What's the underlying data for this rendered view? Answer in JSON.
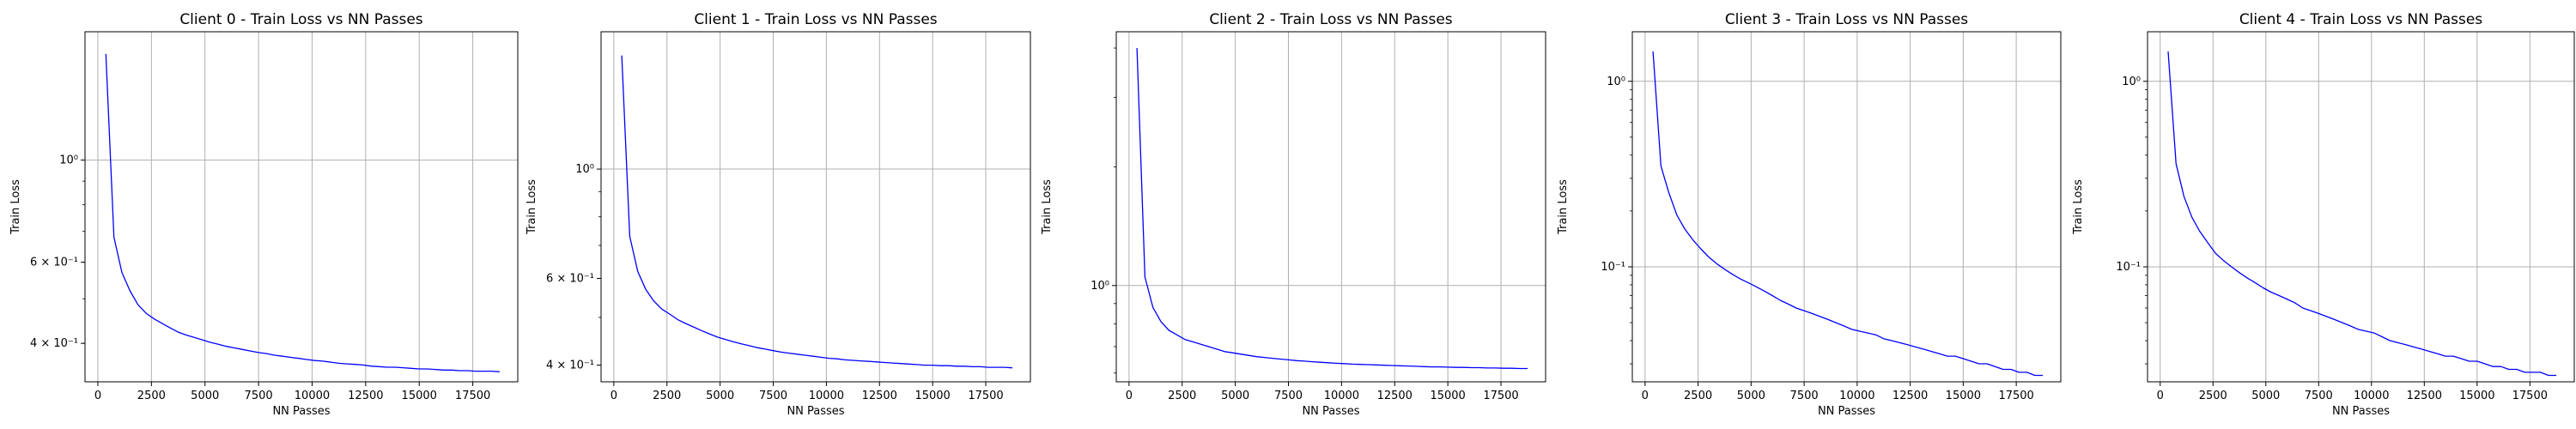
{
  "chart_data": [
    {
      "type": "line",
      "title": "Client 0 - Train Loss vs NN Passes",
      "xlabel": "NN Passes",
      "ylabel": "Train Loss",
      "yscale": "log",
      "grid": true,
      "line_color": "#0000ff",
      "xlim": [
        -600,
        19600
      ],
      "ylim": [
        0.33,
        1.9
      ],
      "xticks": [
        0,
        2500,
        5000,
        7500,
        10000,
        12500,
        15000,
        17500
      ],
      "xtick_labels": [
        "0",
        "2500",
        "5000",
        "7500",
        "10000",
        "12500",
        "15000",
        "17500"
      ],
      "yticks": [
        {
          "value": 1.0,
          "label": "10⁰",
          "grid": true
        },
        {
          "value": 0.6,
          "label": "6 × 10⁻¹",
          "grid": false
        },
        {
          "value": 0.4,
          "label": "4 × 10⁻¹",
          "grid": false
        }
      ],
      "series": [
        {
          "x": [
            375,
            750,
            1125,
            1500,
            1875,
            2250,
            2625,
            3000,
            3375,
            3750,
            4125,
            4500,
            4875,
            5250,
            5625,
            6000,
            6375,
            6750,
            7125,
            7500,
            7875,
            8250,
            8625,
            9000,
            9375,
            9750,
            10125,
            10500,
            10875,
            11250,
            11625,
            12000,
            12375,
            12750,
            13125,
            13500,
            13875,
            14250,
            14625,
            15000,
            15375,
            15750,
            16125,
            16500,
            16875,
            17250,
            17625,
            18000,
            18375,
            18750
          ],
          "values": [
            1.7,
            0.68,
            0.57,
            0.52,
            0.485,
            0.465,
            0.452,
            0.442,
            0.432,
            0.423,
            0.417,
            0.412,
            0.407,
            0.402,
            0.398,
            0.394,
            0.391,
            0.388,
            0.385,
            0.382,
            0.38,
            0.377,
            0.375,
            0.373,
            0.371,
            0.369,
            0.367,
            0.366,
            0.364,
            0.362,
            0.361,
            0.36,
            0.359,
            0.357,
            0.356,
            0.355,
            0.355,
            0.354,
            0.353,
            0.352,
            0.352,
            0.351,
            0.35,
            0.35,
            0.349,
            0.349,
            0.348,
            0.348,
            0.348,
            0.347
          ]
        }
      ]
    },
    {
      "type": "line",
      "title": "Client 1 - Train Loss vs NN Passes",
      "xlabel": "NN Passes",
      "ylabel": "Train Loss",
      "yscale": "log",
      "grid": true,
      "line_color": "#0000ff",
      "xlim": [
        -600,
        19600
      ],
      "ylim": [
        0.37,
        1.9
      ],
      "xticks": [
        0,
        2500,
        5000,
        7500,
        10000,
        12500,
        15000,
        17500
      ],
      "xtick_labels": [
        "0",
        "2500",
        "5000",
        "7500",
        "10000",
        "12500",
        "15000",
        "17500"
      ],
      "yticks": [
        {
          "value": 1.0,
          "label": "10⁰",
          "grid": true
        },
        {
          "value": 0.6,
          "label": "6 × 10⁻¹",
          "grid": false
        },
        {
          "value": 0.4,
          "label": "4 × 10⁻¹",
          "grid": false
        }
      ],
      "series": [
        {
          "x": [
            375,
            750,
            1125,
            1500,
            1875,
            2250,
            2625,
            3000,
            3375,
            3750,
            4125,
            4500,
            4875,
            5250,
            5625,
            6000,
            6375,
            6750,
            7125,
            7500,
            7875,
            8250,
            8625,
            9000,
            9375,
            9750,
            10125,
            10500,
            10875,
            11250,
            11625,
            12000,
            12375,
            12750,
            13125,
            13500,
            13875,
            14250,
            14625,
            15000,
            15375,
            15750,
            16125,
            16500,
            16875,
            17250,
            17625,
            18000,
            18375,
            18750
          ],
          "values": [
            1.7,
            0.73,
            0.62,
            0.57,
            0.54,
            0.52,
            0.508,
            0.495,
            0.486,
            0.478,
            0.47,
            0.463,
            0.456,
            0.451,
            0.446,
            0.442,
            0.438,
            0.434,
            0.431,
            0.428,
            0.425,
            0.423,
            0.421,
            0.419,
            0.417,
            0.415,
            0.413,
            0.412,
            0.41,
            0.409,
            0.408,
            0.407,
            0.406,
            0.405,
            0.404,
            0.403,
            0.402,
            0.401,
            0.4,
            0.4,
            0.399,
            0.399,
            0.398,
            0.398,
            0.397,
            0.397,
            0.396,
            0.396,
            0.396,
            0.395
          ]
        }
      ]
    },
    {
      "type": "line",
      "title": "Client 2 - Train Loss vs NN Passes",
      "xlabel": "NN Passes",
      "ylabel": "Train Loss",
      "yscale": "log",
      "grid": true,
      "line_color": "#0000ff",
      "xlim": [
        -600,
        19600
      ],
      "ylim": [
        0.57,
        4.4
      ],
      "xticks": [
        0,
        2500,
        5000,
        7500,
        10000,
        12500,
        15000,
        17500
      ],
      "xtick_labels": [
        "0",
        "2500",
        "5000",
        "7500",
        "10000",
        "12500",
        "15000",
        "17500"
      ],
      "yticks": [
        {
          "value": 1.0,
          "label": "10⁰",
          "grid": true
        }
      ],
      "series": [
        {
          "x": [
            375,
            750,
            1125,
            1500,
            1875,
            2250,
            2625,
            3000,
            3375,
            3750,
            4125,
            4500,
            4875,
            5250,
            5625,
            6000,
            6375,
            6750,
            7125,
            7500,
            7875,
            8250,
            8625,
            9000,
            9375,
            9750,
            10125,
            10500,
            10875,
            11250,
            11625,
            12000,
            12375,
            12750,
            13125,
            13500,
            13875,
            14250,
            14625,
            15000,
            15375,
            15750,
            16125,
            16500,
            16875,
            17250,
            17625,
            18000,
            18375,
            18750
          ],
          "values": [
            4.0,
            1.05,
            0.88,
            0.81,
            0.77,
            0.75,
            0.73,
            0.72,
            0.71,
            0.7,
            0.69,
            0.68,
            0.675,
            0.67,
            0.665,
            0.66,
            0.657,
            0.654,
            0.651,
            0.648,
            0.645,
            0.643,
            0.641,
            0.639,
            0.637,
            0.635,
            0.634,
            0.632,
            0.631,
            0.63,
            0.629,
            0.628,
            0.627,
            0.626,
            0.625,
            0.624,
            0.623,
            0.622,
            0.622,
            0.621,
            0.62,
            0.62,
            0.619,
            0.619,
            0.618,
            0.618,
            0.617,
            0.617,
            0.616,
            0.616
          ]
        }
      ]
    },
    {
      "type": "line",
      "title": "Client 3 - Train Loss vs NN Passes",
      "xlabel": "NN Passes",
      "ylabel": "Train Loss",
      "yscale": "log",
      "grid": true,
      "line_color": "#0000ff",
      "xlim": [
        -600,
        19600
      ],
      "ylim": [
        0.024,
        1.85
      ],
      "xticks": [
        0,
        2500,
        5000,
        7500,
        10000,
        12500,
        15000,
        17500
      ],
      "xtick_labels": [
        "0",
        "2500",
        "5000",
        "7500",
        "10000",
        "12500",
        "15000",
        "17500"
      ],
      "yticks": [
        {
          "value": 1.0,
          "label": "10⁰",
          "grid": true
        },
        {
          "value": 0.1,
          "label": "10⁻¹",
          "grid": true
        }
      ],
      "series": [
        {
          "x": [
            375,
            750,
            1125,
            1500,
            1875,
            2250,
            2625,
            3000,
            3375,
            3750,
            4125,
            4500,
            4875,
            5250,
            5625,
            6000,
            6375,
            6750,
            7125,
            7500,
            7875,
            8250,
            8625,
            9000,
            9375,
            9750,
            10125,
            10500,
            10875,
            11250,
            11625,
            12000,
            12375,
            12750,
            13125,
            13500,
            13875,
            14250,
            14625,
            15000,
            15375,
            15750,
            16125,
            16500,
            16875,
            17250,
            17625,
            18000,
            18375,
            18750
          ],
          "values": [
            1.45,
            0.35,
            0.25,
            0.19,
            0.16,
            0.14,
            0.125,
            0.113,
            0.104,
            0.097,
            0.091,
            0.086,
            0.082,
            0.078,
            0.074,
            0.07,
            0.066,
            0.063,
            0.06,
            0.058,
            0.056,
            0.054,
            0.052,
            0.05,
            0.048,
            0.046,
            0.045,
            0.044,
            0.043,
            0.041,
            0.04,
            0.039,
            0.038,
            0.037,
            0.036,
            0.035,
            0.034,
            0.033,
            0.033,
            0.032,
            0.031,
            0.03,
            0.03,
            0.029,
            0.028,
            0.028,
            0.027,
            0.027,
            0.026,
            0.026
          ]
        }
      ]
    },
    {
      "type": "line",
      "title": "Client 4 - Train Loss vs NN Passes",
      "xlabel": "NN Passes",
      "ylabel": "Train Loss",
      "yscale": "log",
      "grid": true,
      "line_color": "#0000ff",
      "xlim": [
        -600,
        19600
      ],
      "ylim": [
        0.024,
        1.85
      ],
      "xticks": [
        0,
        2500,
        5000,
        7500,
        10000,
        12500,
        15000,
        17500
      ],
      "xtick_labels": [
        "0",
        "2500",
        "5000",
        "7500",
        "10000",
        "12500",
        "15000",
        "17500"
      ],
      "yticks": [
        {
          "value": 1.0,
          "label": "10⁰",
          "grid": true
        },
        {
          "value": 0.1,
          "label": "10⁻¹",
          "grid": true
        }
      ],
      "series": [
        {
          "x": [
            375,
            750,
            1125,
            1500,
            1875,
            2250,
            2625,
            3000,
            3375,
            3750,
            4125,
            4500,
            4875,
            5250,
            5625,
            6000,
            6375,
            6750,
            7125,
            7500,
            7875,
            8250,
            8625,
            9000,
            9375,
            9750,
            10125,
            10500,
            10875,
            11250,
            11625,
            12000,
            12375,
            12750,
            13125,
            13500,
            13875,
            14250,
            14625,
            15000,
            15375,
            15750,
            16125,
            16500,
            16875,
            17250,
            17625,
            18000,
            18375,
            18750
          ],
          "values": [
            1.45,
            0.36,
            0.24,
            0.185,
            0.155,
            0.135,
            0.118,
            0.108,
            0.1,
            0.093,
            0.087,
            0.082,
            0.077,
            0.073,
            0.07,
            0.067,
            0.064,
            0.06,
            0.058,
            0.056,
            0.054,
            0.052,
            0.05,
            0.048,
            0.046,
            0.045,
            0.044,
            0.042,
            0.04,
            0.039,
            0.038,
            0.037,
            0.036,
            0.035,
            0.034,
            0.033,
            0.033,
            0.032,
            0.031,
            0.031,
            0.03,
            0.029,
            0.029,
            0.028,
            0.028,
            0.027,
            0.027,
            0.027,
            0.026,
            0.026
          ]
        }
      ]
    }
  ]
}
